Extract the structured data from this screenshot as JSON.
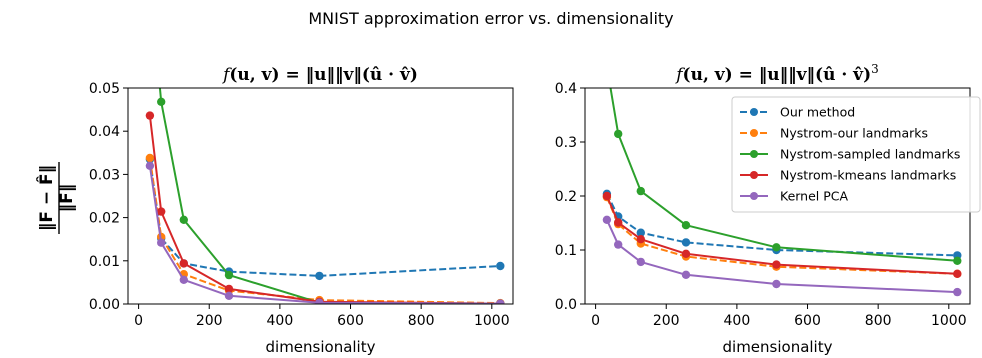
{
  "figure_title": "MNIST approximation error vs. dimensionality",
  "ylabel": "‖F − F̂‖ / ‖F‖",
  "ylabel_numerator": "‖F − F̂‖",
  "ylabel_denominator": "‖F‖",
  "legend": {
    "placement": "upper-right",
    "entries": [
      {
        "name": "Our method",
        "color": "#1f77b4",
        "dashed": true
      },
      {
        "name": "Nystrom-our landmarks",
        "color": "#ff7f0e",
        "dashed": true
      },
      {
        "name": "Nystrom-sampled landmarks",
        "color": "#2ca02c",
        "dashed": false
      },
      {
        "name": "Nystrom-kmeans landmarks",
        "color": "#d62728",
        "dashed": false
      },
      {
        "name": "Kernel PCA",
        "color": "#9467bd",
        "dashed": false
      }
    ]
  },
  "chart_data": [
    {
      "type": "line",
      "title": "f(u, v) = ‖u‖‖v‖(û · v̂)",
      "title_parts": {
        "f": "f",
        "args": "(u, v) = ‖u‖‖v‖(û · v̂)",
        "exponent": ""
      },
      "xlabel": "dimensionality",
      "ylabel": "‖F − F̂‖ / ‖F‖",
      "xlim": [
        -30,
        1060
      ],
      "ylim": [
        0,
        0.05
      ],
      "xticks": [
        0,
        200,
        400,
        600,
        800,
        1000
      ],
      "xtick_labels": [
        "0",
        "200",
        "400",
        "600",
        "800",
        "1000"
      ],
      "yticks": [
        0,
        0.01,
        0.02,
        0.03,
        0.04,
        0.05
      ],
      "ytick_labels": [
        "0.00",
        "0.01",
        "0.02",
        "0.03",
        "0.04",
        "0.05"
      ],
      "grid": false,
      "legend": false,
      "series": [
        {
          "name": "Our method",
          "color": "#1f77b4",
          "dashed": true,
          "x": [
            32,
            64,
            128,
            256,
            512,
            1024
          ],
          "y": [
            0.0335,
            0.0152,
            0.0094,
            0.0075,
            0.0065,
            0.0088
          ]
        },
        {
          "name": "Nystrom-our landmarks",
          "color": "#ff7f0e",
          "dashed": true,
          "x": [
            32,
            64,
            128,
            256,
            512,
            1024
          ],
          "y": [
            0.0338,
            0.0155,
            0.0069,
            0.0031,
            0.0009,
            0.0002
          ]
        },
        {
          "name": "Nystrom-sampled landmarks",
          "color": "#2ca02c",
          "dashed": false,
          "x": [
            32,
            64,
            128,
            256,
            512,
            1024
          ],
          "y": [
            0.075,
            0.0468,
            0.0195,
            0.0067,
            0.0003,
            0.0001
          ]
        },
        {
          "name": "Nystrom-kmeans landmarks",
          "color": "#d62728",
          "dashed": false,
          "x": [
            32,
            64,
            128,
            256,
            512,
            1024
          ],
          "y": [
            0.0436,
            0.0214,
            0.0094,
            0.0035,
            0.0005,
            0.0001
          ]
        },
        {
          "name": "Kernel PCA",
          "color": "#9467bd",
          "dashed": false,
          "x": [
            32,
            64,
            128,
            256,
            512,
            1024
          ],
          "y": [
            0.032,
            0.0142,
            0.0056,
            0.0019,
            0.0003,
            0.0001
          ]
        }
      ]
    },
    {
      "type": "line",
      "title": "f(u, v) = ‖u‖‖v‖(û · v̂)³",
      "title_parts": {
        "f": "f",
        "args": "(u, v) = ‖u‖‖v‖(û · v̂)",
        "exponent": "3"
      },
      "xlabel": "dimensionality",
      "ylabel": "",
      "xlim": [
        -30,
        1060
      ],
      "ylim": [
        0,
        0.4
      ],
      "xticks": [
        0,
        200,
        400,
        600,
        800,
        1000
      ],
      "xtick_labels": [
        "0",
        "200",
        "400",
        "600",
        "800",
        "1000"
      ],
      "yticks": [
        0,
        0.1,
        0.2,
        0.3,
        0.4
      ],
      "ytick_labels": [
        "0.0",
        "0.1",
        "0.2",
        "0.3",
        "0.4"
      ],
      "grid": false,
      "legend": true,
      "series": [
        {
          "name": "Our method",
          "color": "#1f77b4",
          "dashed": true,
          "x": [
            32,
            64,
            128,
            256,
            512,
            1024
          ],
          "y": [
            0.204,
            0.162,
            0.132,
            0.114,
            0.1,
            0.09
          ]
        },
        {
          "name": "Nystrom-our landmarks",
          "color": "#ff7f0e",
          "dashed": true,
          "x": [
            32,
            64,
            128,
            256,
            512,
            1024
          ],
          "y": [
            0.198,
            0.148,
            0.112,
            0.088,
            0.069,
            0.056
          ]
        },
        {
          "name": "Nystrom-sampled landmarks",
          "color": "#2ca02c",
          "dashed": false,
          "x": [
            32,
            64,
            128,
            256,
            512,
            1024
          ],
          "y": [
            0.44,
            0.315,
            0.209,
            0.146,
            0.105,
            0.08
          ]
        },
        {
          "name": "Nystrom-kmeans landmarks",
          "color": "#d62728",
          "dashed": false,
          "x": [
            32,
            64,
            128,
            256,
            512,
            1024
          ],
          "y": [
            0.2,
            0.151,
            0.12,
            0.093,
            0.073,
            0.056
          ]
        },
        {
          "name": "Kernel PCA",
          "color": "#9467bd",
          "dashed": false,
          "x": [
            32,
            64,
            128,
            256,
            512,
            1024
          ],
          "y": [
            0.156,
            0.11,
            0.078,
            0.054,
            0.037,
            0.022
          ]
        }
      ]
    }
  ]
}
